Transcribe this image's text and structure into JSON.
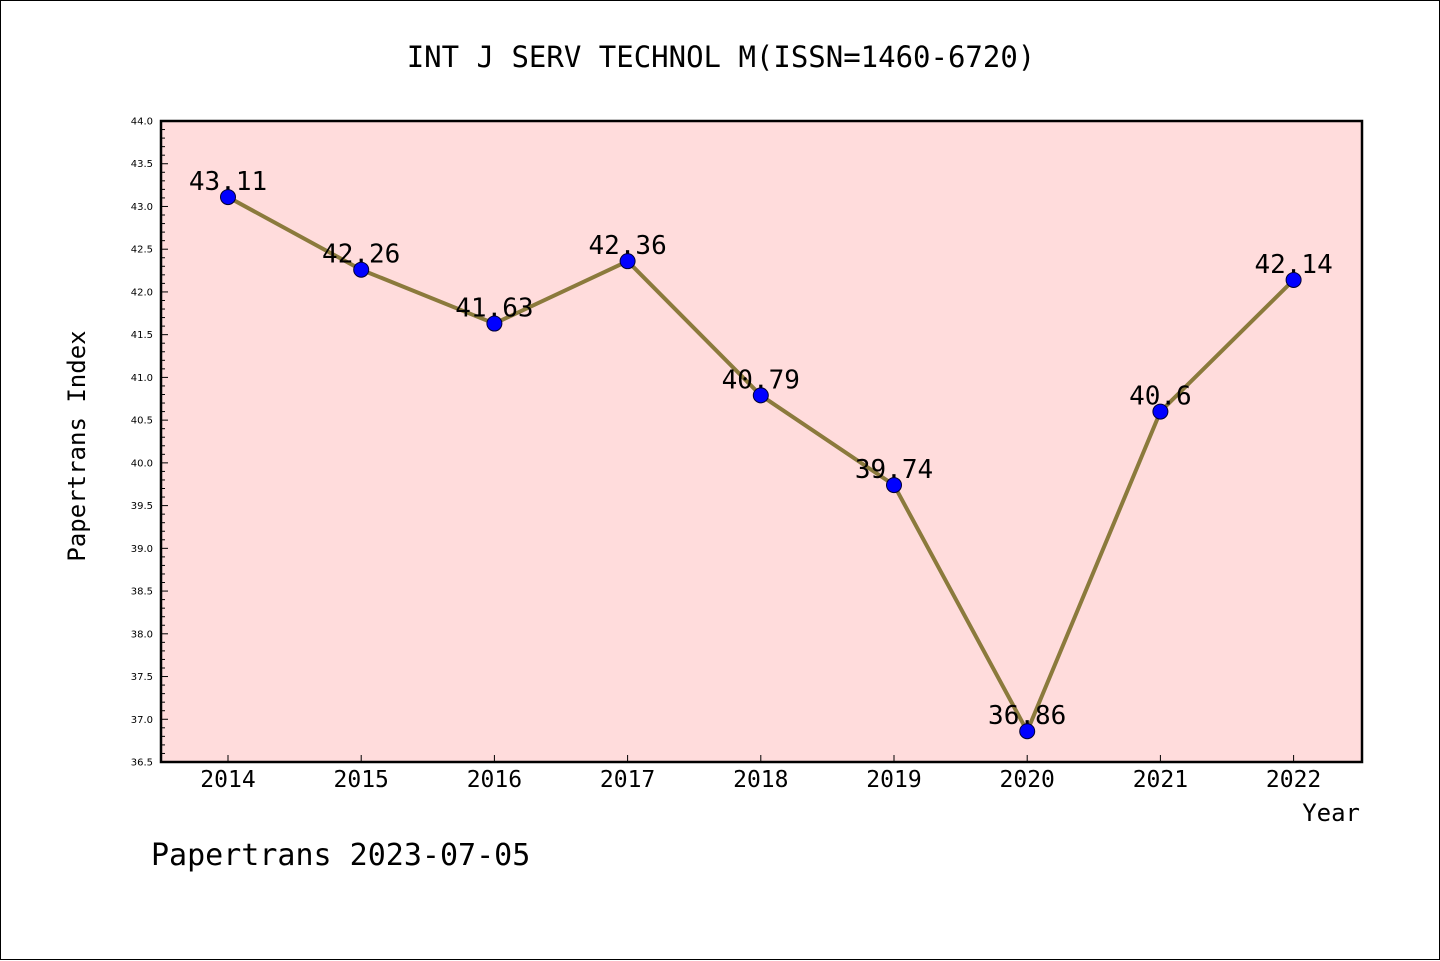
{
  "chart_data": {
    "type": "line",
    "title": "INT J SERV TECHNOL M(ISSN=1460-6720)",
    "xlabel": "Year",
    "ylabel": "Papertrans Index",
    "categories": [
      "2014",
      "2015",
      "2016",
      "2017",
      "2018",
      "2019",
      "2020",
      "2021",
      "2022"
    ],
    "series": [
      {
        "values": [
          43.11,
          42.26,
          41.63,
          42.36,
          40.79,
          39.74,
          36.86,
          40.6,
          42.14
        ],
        "data_labels": [
          "43.11",
          "42.26",
          "41.63",
          "42.36",
          "40.79",
          "39.74",
          "36.86",
          "40.6",
          "42.14"
        ],
        "line_color": "#8b7a3c",
        "marker_color": "#0000ff"
      }
    ],
    "ylim": [
      36.5,
      44.0
    ],
    "yticks": [
      36.5,
      37.0,
      37.5,
      38.0,
      38.5,
      39.0,
      39.5,
      40.0,
      40.5,
      41.0,
      41.5,
      42.0,
      42.5,
      43.0,
      43.5,
      44.0
    ],
    "ytick_labels": [
      "36.5",
      "37.0",
      "37.5",
      "38.0",
      "38.5",
      "39.0",
      "39.5",
      "40.0",
      "40.5",
      "41.0",
      "41.5",
      "42.0",
      "42.5",
      "43.0",
      "43.5",
      "44.0"
    ],
    "grid": false,
    "plot_background": "#ffdcdc"
  },
  "footer": {
    "text": "Papertrans 2023-07-05"
  }
}
